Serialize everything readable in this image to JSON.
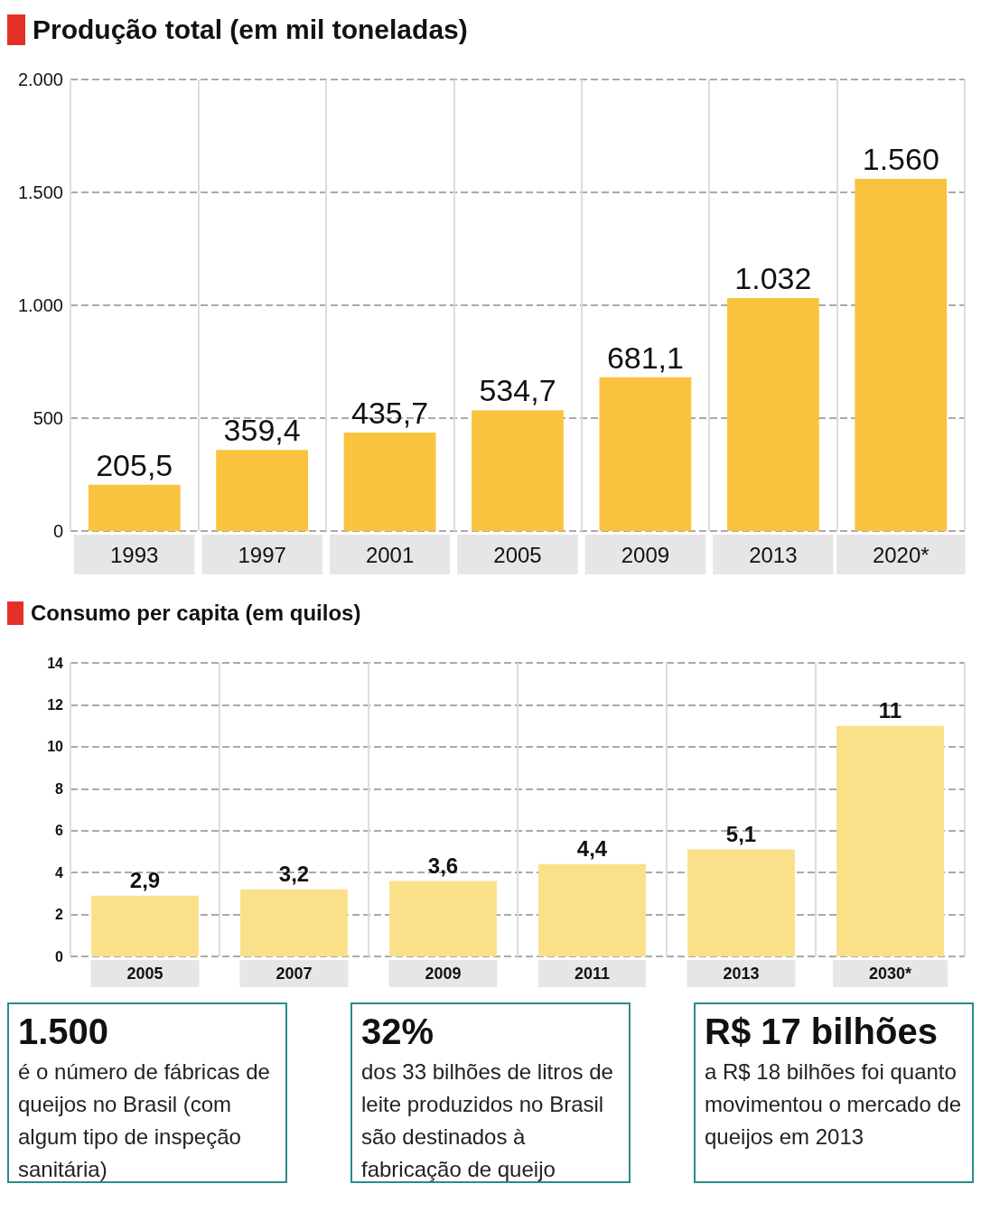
{
  "chart_data": [
    {
      "type": "bar",
      "title": "Produção total (em mil toneladas)",
      "categories": [
        "1993",
        "1997",
        "2001",
        "2005",
        "2009",
        "2013",
        "2020*"
      ],
      "values": [
        205.5,
        359.4,
        435.7,
        534.7,
        681.1,
        1032,
        1560
      ],
      "value_labels": [
        "205,5",
        "359,4",
        "435,7",
        "534,7",
        "681,1",
        "1.032",
        "1.560"
      ],
      "color": "#f9c33f",
      "ylim": [
        0,
        2000
      ],
      "yticks": [
        0,
        500,
        {
          "value": 1000,
          "label": "1.000"
        },
        {
          "value": 1500,
          "label": "1.500"
        },
        {
          "value": 2000,
          "label": "2.000"
        }
      ],
      "grid": true
    },
    {
      "type": "bar",
      "title": "Consumo per capita (em quilos)",
      "categories": [
        "2005",
        "2007",
        "2009",
        "2011",
        "2013",
        "2030*"
      ],
      "values": [
        2.9,
        3.2,
        3.6,
        4.4,
        5.1,
        11
      ],
      "value_labels": [
        "2,9",
        "3,2",
        "3,6",
        "4,4",
        "5,1",
        "11"
      ],
      "color": "#fbe08a",
      "ylim": [
        0,
        14
      ],
      "yticks": [
        0,
        2,
        4,
        6,
        8,
        10,
        12,
        14
      ],
      "grid": true
    },
    {
      "type": "other",
      "annotations": [
        "1.500",
        "é o número de fábricas de queijos no Brasil (com algum tipo de inspeção sanitária)",
        "32%",
        "dos 33 bilhões de litros de leite produzidos no Brasil são destinados à fabricação de queijo",
        "R$ 17 bilhões",
        "a R$ 18 bilhões foi quanto movimentou o mercado de queijos em 2013"
      ]
    }
  ]
}
